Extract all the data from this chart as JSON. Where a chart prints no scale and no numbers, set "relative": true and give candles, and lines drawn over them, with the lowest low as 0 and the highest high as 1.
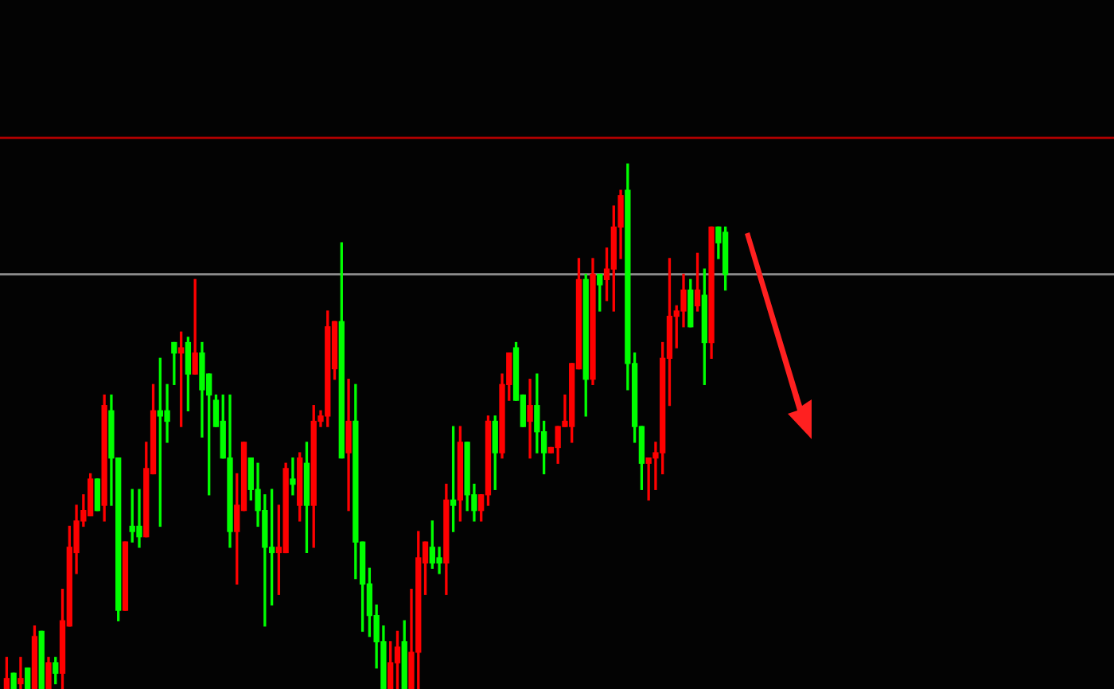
{
  "chart_data": {
    "type": "candlestick",
    "relative": true,
    "legend": false,
    "tick_labels": false,
    "categories": [
      null,
      null,
      null,
      null,
      null,
      null,
      null,
      null,
      null,
      null,
      null,
      null,
      null,
      null,
      null,
      null,
      null,
      null,
      null,
      null,
      null,
      null,
      null,
      null,
      null,
      null,
      null,
      null,
      null,
      null,
      null,
      null,
      null,
      null,
      null,
      null,
      null,
      null,
      null,
      null,
      null,
      null,
      null,
      null,
      null,
      null,
      null,
      null,
      null,
      null,
      null,
      null,
      null,
      null,
      null,
      null,
      null,
      null,
      null,
      null,
      null,
      null,
      null,
      null,
      null,
      null,
      null,
      null,
      null,
      null,
      null,
      null,
      null,
      null,
      null,
      null,
      null,
      null,
      null,
      null,
      null,
      null,
      null,
      null,
      null,
      null,
      null,
      null,
      null,
      null,
      null,
      null,
      null,
      null,
      null,
      null,
      null,
      null,
      null,
      null,
      null,
      null,
      null,
      null
    ],
    "ohlc": [
      [
        0,
        0.06,
        0,
        0.02
      ],
      [
        0.03,
        0.03,
        0,
        0
      ],
      [
        0.01,
        0.06,
        0,
        0.02
      ],
      [
        0.04,
        0.04,
        0,
        0
      ],
      [
        0,
        0.12,
        0,
        0.1
      ],
      [
        0.11,
        0.11,
        0,
        0
      ],
      [
        0,
        0.06,
        0,
        0.05
      ],
      [
        0.05,
        0.06,
        0.01,
        0.03
      ],
      [
        0.03,
        0.19,
        0,
        0.13
      ],
      [
        0.12,
        0.31,
        0.12,
        0.27
      ],
      [
        0.26,
        0.35,
        0.22,
        0.32
      ],
      [
        0.32,
        0.37,
        0.31,
        0.34
      ],
      [
        0.33,
        0.41,
        0.33,
        0.4
      ],
      [
        0.4,
        0.4,
        0.34,
        0.34
      ],
      [
        0.35,
        0.56,
        0.32,
        0.54
      ],
      [
        0.53,
        0.56,
        0.35,
        0.44
      ],
      [
        0.44,
        0.44,
        0.13,
        0.15
      ],
      [
        0.15,
        0.28,
        0.15,
        0.28
      ],
      [
        0.31,
        0.38,
        0.28,
        0.3
      ],
      [
        0.31,
        0.38,
        0.27,
        0.29
      ],
      [
        0.29,
        0.47,
        0.29,
        0.42
      ],
      [
        0.41,
        0.58,
        0.41,
        0.53
      ],
      [
        0.53,
        0.63,
        0.31,
        0.52
      ],
      [
        0.53,
        0.58,
        0.47,
        0.51
      ],
      [
        0.66,
        0.66,
        0.58,
        0.64
      ],
      [
        0.64,
        0.68,
        0.5,
        0.65
      ],
      [
        0.66,
        0.67,
        0.53,
        0.6
      ],
      [
        0.6,
        0.78,
        0.6,
        0.64
      ],
      [
        0.64,
        0.66,
        0.48,
        0.57
      ],
      [
        0.6,
        0.6,
        0.37,
        0.56
      ],
      [
        0.55,
        0.56,
        0.5,
        0.5
      ],
      [
        0.51,
        0.56,
        0.44,
        0.44
      ],
      [
        0.44,
        0.56,
        0.27,
        0.3
      ],
      [
        0.3,
        0.41,
        0.2,
        0.35
      ],
      [
        0.34,
        0.47,
        0.34,
        0.47
      ],
      [
        0.44,
        0.44,
        0.36,
        0.38
      ],
      [
        0.38,
        0.43,
        0.31,
        0.34
      ],
      [
        0.34,
        0.37,
        0.12,
        0.27
      ],
      [
        0.27,
        0.38,
        0.16,
        0.26
      ],
      [
        0.26,
        0.35,
        0.18,
        0.27
      ],
      [
        0.26,
        0.43,
        0.26,
        0.42
      ],
      [
        0.4,
        0.44,
        0.37,
        0.39
      ],
      [
        0.35,
        0.45,
        0.32,
        0.44
      ],
      [
        0.43,
        0.47,
        0.26,
        0.35
      ],
      [
        0.35,
        0.54,
        0.27,
        0.51
      ],
      [
        0.51,
        0.53,
        0.5,
        0.52
      ],
      [
        0.52,
        0.72,
        0.5,
        0.69
      ],
      [
        0.61,
        0.7,
        0.59,
        0.7
      ],
      [
        0.7,
        0.85,
        0.44,
        0.44
      ],
      [
        0.45,
        0.59,
        0.34,
        0.51
      ],
      [
        0.51,
        0.58,
        0.21,
        0.28
      ],
      [
        0.28,
        0.28,
        0.11,
        0.2
      ],
      [
        0.2,
        0.23,
        0.1,
        0.14
      ],
      [
        0.14,
        0.16,
        0.04,
        0.09
      ],
      [
        0.09,
        0.12,
        0,
        0
      ],
      [
        0,
        0.09,
        0,
        0.05
      ],
      [
        0.05,
        0.11,
        0,
        0.08
      ],
      [
        0.09,
        0.13,
        0,
        0
      ],
      [
        0,
        0.19,
        0,
        0.07
      ],
      [
        0.07,
        0.3,
        0,
        0.25
      ],
      [
        0.24,
        0.28,
        0.18,
        0.28
      ],
      [
        0.27,
        0.32,
        0.23,
        0.24
      ],
      [
        0.25,
        0.27,
        0.22,
        0.24
      ],
      [
        0.24,
        0.39,
        0.18,
        0.36
      ],
      [
        0.36,
        0.5,
        0.3,
        0.35
      ],
      [
        0.36,
        0.5,
        0.32,
        0.47
      ],
      [
        0.47,
        0.47,
        0.34,
        0.37
      ],
      [
        0.37,
        0.39,
        0.32,
        0.34
      ],
      [
        0.34,
        0.37,
        0.32,
        0.37
      ],
      [
        0.37,
        0.52,
        0.35,
        0.51
      ],
      [
        0.51,
        0.52,
        0.38,
        0.45
      ],
      [
        0.45,
        0.6,
        0.44,
        0.58
      ],
      [
        0.58,
        0.64,
        0.55,
        0.64
      ],
      [
        0.65,
        0.66,
        0.55,
        0.55
      ],
      [
        0.56,
        0.56,
        0.5,
        0.5
      ],
      [
        0.51,
        0.59,
        0.44,
        0.54
      ],
      [
        0.54,
        0.6,
        0.45,
        0.49
      ],
      [
        0.49,
        0.51,
        0.41,
        0.45
      ],
      [
        0.45,
        0.46,
        0.45,
        0.46
      ],
      [
        0.46,
        0.5,
        0.43,
        0.5
      ],
      [
        0.5,
        0.56,
        0.5,
        0.51
      ],
      [
        0.5,
        0.62,
        0.47,
        0.62
      ],
      [
        0.61,
        0.82,
        0.61,
        0.78
      ],
      [
        0.78,
        0.79,
        0.52,
        0.59
      ],
      [
        0.59,
        0.82,
        0.58,
        0.79
      ],
      [
        0.79,
        0.79,
        0.72,
        0.77
      ],
      [
        0.78,
        0.84,
        0.74,
        0.8
      ],
      [
        0.8,
        0.92,
        0.72,
        0.88
      ],
      [
        0.88,
        0.95,
        0.82,
        0.94
      ],
      [
        0.95,
        1,
        0.57,
        0.62
      ],
      [
        0.62,
        0.64,
        0.47,
        0.5
      ],
      [
        0.5,
        0.5,
        0.38,
        0.43
      ],
      [
        0.43,
        0.44,
        0.36,
        0.44
      ],
      [
        0.44,
        0.47,
        0.38,
        0.45
      ],
      [
        0.45,
        0.66,
        0.41,
        0.63
      ],
      [
        0.63,
        0.82,
        0.54,
        0.71
      ],
      [
        0.71,
        0.73,
        0.65,
        0.72
      ],
      [
        0.72,
        0.79,
        0.69,
        0.76
      ],
      [
        0.76,
        0.78,
        0.69,
        0.69
      ],
      [
        0.73,
        0.83,
        0.72,
        0.76
      ],
      [
        0.75,
        0.8,
        0.58,
        0.66
      ],
      [
        0.66,
        0.88,
        0.63,
        0.88
      ],
      [
        0.88,
        0.88,
        0.82,
        0.85
      ],
      [
        0.87,
        0.88,
        0.76,
        0.79
      ]
    ],
    "colors": [
      "#ff0000",
      "#00ff00",
      "#ff0000",
      "#00ff00",
      "#ff0000",
      "#00ff00",
      "#ff0000",
      "#00ff00",
      "#ff0000",
      "#ff0000",
      "#ff0000",
      "#ff0000",
      "#ff0000",
      "#00ff00",
      "#ff0000",
      "#00ff00",
      "#00ff00",
      "#ff0000",
      "#00ff00",
      "#00ff00",
      "#ff0000",
      "#ff0000",
      "#00ff00",
      "#00ff00",
      "#00ff00",
      "#ff0000",
      "#00ff00",
      "#ff0000",
      "#00ff00",
      "#00ff00",
      "#00ff00",
      "#00ff00",
      "#00ff00",
      "#ff0000",
      "#ff0000",
      "#00ff00",
      "#00ff00",
      "#00ff00",
      "#00ff00",
      "#ff0000",
      "#ff0000",
      "#00ff00",
      "#ff0000",
      "#00ff00",
      "#ff0000",
      "#ff0000",
      "#ff0000",
      "#ff0000",
      "#00ff00",
      "#ff0000",
      "#00ff00",
      "#00ff00",
      "#00ff00",
      "#00ff00",
      "#00ff00",
      "#ff0000",
      "#ff0000",
      "#00ff00",
      "#ff0000",
      "#ff0000",
      "#ff0000",
      "#00ff00",
      "#00ff00",
      "#ff0000",
      "#00ff00",
      "#ff0000",
      "#00ff00",
      "#00ff00",
      "#ff0000",
      "#ff0000",
      "#00ff00",
      "#ff0000",
      "#ff0000",
      "#00ff00",
      "#00ff00",
      "#ff0000",
      "#00ff00",
      "#00ff00",
      "#ff0000",
      "#ff0000",
      "#ff0000",
      "#ff0000",
      "#ff0000",
      "#00ff00",
      "#ff0000",
      "#00ff00",
      "#ff0000",
      "#ff0000",
      "#ff0000",
      "#00ff00",
      "#00ff00",
      "#00ff00",
      "#ff0000",
      "#ff0000",
      "#ff0000",
      "#ff0000",
      "#ff0000",
      "#ff0000",
      "#00ff00",
      "#ff0000",
      "#00ff00",
      "#ff0000",
      "#00ff00",
      "#00ff00"
    ],
    "ref_lines": [
      {
        "axis": "y",
        "value": 1.05,
        "color": "#b00000",
        "line_style": "solid"
      },
      {
        "axis": "y",
        "value": 0.79,
        "color": "#8c8c8c",
        "line_style": "solid"
      }
    ]
  }
}
